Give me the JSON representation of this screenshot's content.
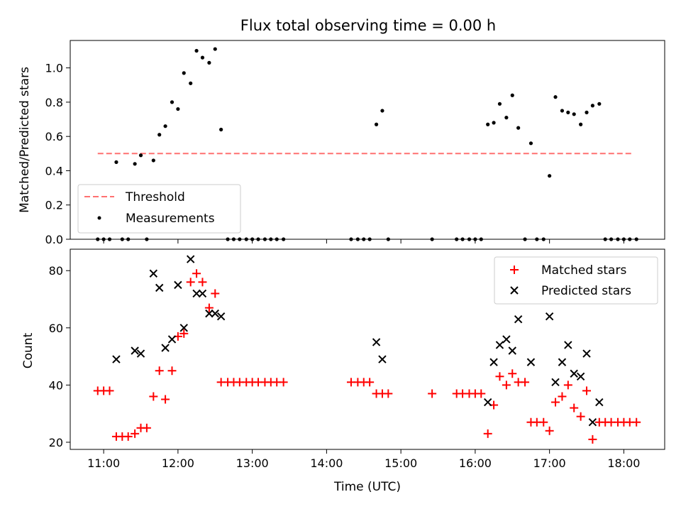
{
  "title": "Flux total observing time = 0.00 h",
  "chart_data": [
    {
      "type": "scatter",
      "ylabel": "Matched/Predicted stars",
      "xlim": [
        10.55,
        18.55
      ],
      "ylim": [
        0,
        1.16
      ],
      "x_ticks": [
        11,
        12,
        13,
        14,
        15,
        16,
        17,
        18
      ],
      "y_ticks": [
        0.0,
        0.2,
        0.4,
        0.6,
        0.8,
        1.0
      ],
      "y_tick_labels": [
        "0.0",
        "0.2",
        "0.4",
        "0.6",
        "0.8",
        "1.0"
      ],
      "legend_position": "lower-left",
      "series": [
        {
          "name": "Threshold",
          "style": "dashed-line",
          "color": "#ff7070",
          "x": [
            10.92,
            18.13
          ],
          "y": [
            0.5,
            0.5
          ]
        },
        {
          "name": "Measurements",
          "style": "dot",
          "color": "#000000",
          "points": [
            [
              10.92,
              0
            ],
            [
              11.0,
              0
            ],
            [
              11.08,
              0
            ],
            [
              11.17,
              0.45
            ],
            [
              11.25,
              0
            ],
            [
              11.33,
              0
            ],
            [
              11.42,
              0.44
            ],
            [
              11.5,
              0.49
            ],
            [
              11.58,
              0
            ],
            [
              11.67,
              0.46
            ],
            [
              11.75,
              0.61
            ],
            [
              11.83,
              0.66
            ],
            [
              11.92,
              0.8
            ],
            [
              12.0,
              0.76
            ],
            [
              12.08,
              0.97
            ],
            [
              12.17,
              0.91
            ],
            [
              12.25,
              1.1
            ],
            [
              12.33,
              1.06
            ],
            [
              12.42,
              1.03
            ],
            [
              12.5,
              1.11
            ],
            [
              12.58,
              0.64
            ],
            [
              12.67,
              0
            ],
            [
              12.75,
              0
            ],
            [
              12.83,
              0
            ],
            [
              12.92,
              0
            ],
            [
              13.0,
              0
            ],
            [
              13.08,
              0
            ],
            [
              13.17,
              0
            ],
            [
              13.25,
              0
            ],
            [
              13.33,
              0
            ],
            [
              13.42,
              0
            ],
            [
              14.33,
              0
            ],
            [
              14.42,
              0
            ],
            [
              14.5,
              0
            ],
            [
              14.58,
              0
            ],
            [
              14.67,
              0.67
            ],
            [
              14.75,
              0.75
            ],
            [
              14.83,
              0
            ],
            [
              15.42,
              0
            ],
            [
              15.75,
              0
            ],
            [
              15.83,
              0
            ],
            [
              15.92,
              0
            ],
            [
              16.0,
              0
            ],
            [
              16.08,
              0
            ],
            [
              16.17,
              0.67
            ],
            [
              16.25,
              0.68
            ],
            [
              16.33,
              0.79
            ],
            [
              16.42,
              0.71
            ],
            [
              16.5,
              0.84
            ],
            [
              16.58,
              0.65
            ],
            [
              16.67,
              0
            ],
            [
              16.75,
              0.56
            ],
            [
              16.83,
              0
            ],
            [
              16.92,
              0
            ],
            [
              17.0,
              0.37
            ],
            [
              17.08,
              0.83
            ],
            [
              17.17,
              0.75
            ],
            [
              17.25,
              0.74
            ],
            [
              17.33,
              0.73
            ],
            [
              17.42,
              0.67
            ],
            [
              17.5,
              0.74
            ],
            [
              17.58,
              0.78
            ],
            [
              17.67,
              0.79
            ],
            [
              17.75,
              0
            ],
            [
              17.83,
              0
            ],
            [
              17.92,
              0
            ],
            [
              18.0,
              0
            ],
            [
              18.08,
              0
            ],
            [
              18.17,
              0
            ]
          ]
        }
      ]
    },
    {
      "type": "scatter",
      "xlabel": "Time (UTC)",
      "ylabel": "Count",
      "xlim": [
        10.55,
        18.55
      ],
      "ylim": [
        17.5,
        87.5
      ],
      "x_ticks": [
        11,
        12,
        13,
        14,
        15,
        16,
        17,
        18
      ],
      "x_tick_labels": [
        "11:00",
        "12:00",
        "13:00",
        "14:00",
        "15:00",
        "16:00",
        "17:00",
        "18:00"
      ],
      "y_ticks": [
        20,
        40,
        60,
        80
      ],
      "y_tick_labels": [
        "20",
        "40",
        "60",
        "80"
      ],
      "legend_position": "top-right",
      "series": [
        {
          "name": "Matched stars",
          "style": "plus",
          "color": "#ff0000",
          "points": [
            [
              10.92,
              38
            ],
            [
              11.0,
              38
            ],
            [
              11.08,
              38
            ],
            [
              11.17,
              22
            ],
            [
              11.25,
              22
            ],
            [
              11.33,
              22
            ],
            [
              11.42,
              23
            ],
            [
              11.5,
              25
            ],
            [
              11.58,
              25
            ],
            [
              11.67,
              36
            ],
            [
              11.75,
              45
            ],
            [
              11.83,
              35
            ],
            [
              11.92,
              45
            ],
            [
              12.0,
              57
            ],
            [
              12.08,
              58
            ],
            [
              12.17,
              76
            ],
            [
              12.25,
              79
            ],
            [
              12.33,
              76
            ],
            [
              12.42,
              67
            ],
            [
              12.5,
              72
            ],
            [
              12.58,
              41
            ],
            [
              12.67,
              41
            ],
            [
              12.75,
              41
            ],
            [
              12.83,
              41
            ],
            [
              12.92,
              41
            ],
            [
              13.0,
              41
            ],
            [
              13.08,
              41
            ],
            [
              13.17,
              41
            ],
            [
              13.25,
              41
            ],
            [
              13.33,
              41
            ],
            [
              13.42,
              41
            ],
            [
              14.33,
              41
            ],
            [
              14.42,
              41
            ],
            [
              14.5,
              41
            ],
            [
              14.58,
              41
            ],
            [
              14.67,
              37
            ],
            [
              14.75,
              37
            ],
            [
              14.83,
              37
            ],
            [
              15.42,
              37
            ],
            [
              15.75,
              37
            ],
            [
              15.83,
              37
            ],
            [
              15.92,
              37
            ],
            [
              16.0,
              37
            ],
            [
              16.08,
              37
            ],
            [
              16.17,
              23
            ],
            [
              16.25,
              33
            ],
            [
              16.33,
              43
            ],
            [
              16.42,
              40
            ],
            [
              16.5,
              44
            ],
            [
              16.58,
              41
            ],
            [
              16.67,
              41
            ],
            [
              16.75,
              27
            ],
            [
              16.83,
              27
            ],
            [
              16.92,
              27
            ],
            [
              17.0,
              24
            ],
            [
              17.08,
              34
            ],
            [
              17.17,
              36
            ],
            [
              17.25,
              40
            ],
            [
              17.33,
              32
            ],
            [
              17.42,
              29
            ],
            [
              17.5,
              38
            ],
            [
              17.58,
              21
            ],
            [
              17.67,
              27
            ],
            [
              17.75,
              27
            ],
            [
              17.83,
              27
            ],
            [
              17.92,
              27
            ],
            [
              18.0,
              27
            ],
            [
              18.08,
              27
            ],
            [
              18.17,
              27
            ]
          ]
        },
        {
          "name": "Predicted stars",
          "style": "x",
          "color": "#000000",
          "points": [
            [
              11.17,
              49
            ],
            [
              11.42,
              52
            ],
            [
              11.5,
              51
            ],
            [
              11.67,
              79
            ],
            [
              11.75,
              74
            ],
            [
              11.83,
              53
            ],
            [
              11.92,
              56
            ],
            [
              12.0,
              75
            ],
            [
              12.08,
              60
            ],
            [
              12.17,
              84
            ],
            [
              12.25,
              72
            ],
            [
              12.33,
              72
            ],
            [
              12.42,
              65
            ],
            [
              12.5,
              65
            ],
            [
              12.58,
              64
            ],
            [
              14.67,
              55
            ],
            [
              14.75,
              49
            ],
            [
              16.17,
              34
            ],
            [
              16.25,
              48
            ],
            [
              16.33,
              54
            ],
            [
              16.42,
              56
            ],
            [
              16.5,
              52
            ],
            [
              16.58,
              63
            ],
            [
              16.75,
              48
            ],
            [
              17.0,
              64
            ],
            [
              17.08,
              41
            ],
            [
              17.17,
              48
            ],
            [
              17.25,
              54
            ],
            [
              17.33,
              44
            ],
            [
              17.42,
              43
            ],
            [
              17.5,
              51
            ],
            [
              17.58,
              27
            ],
            [
              17.67,
              34
            ]
          ]
        }
      ]
    }
  ]
}
